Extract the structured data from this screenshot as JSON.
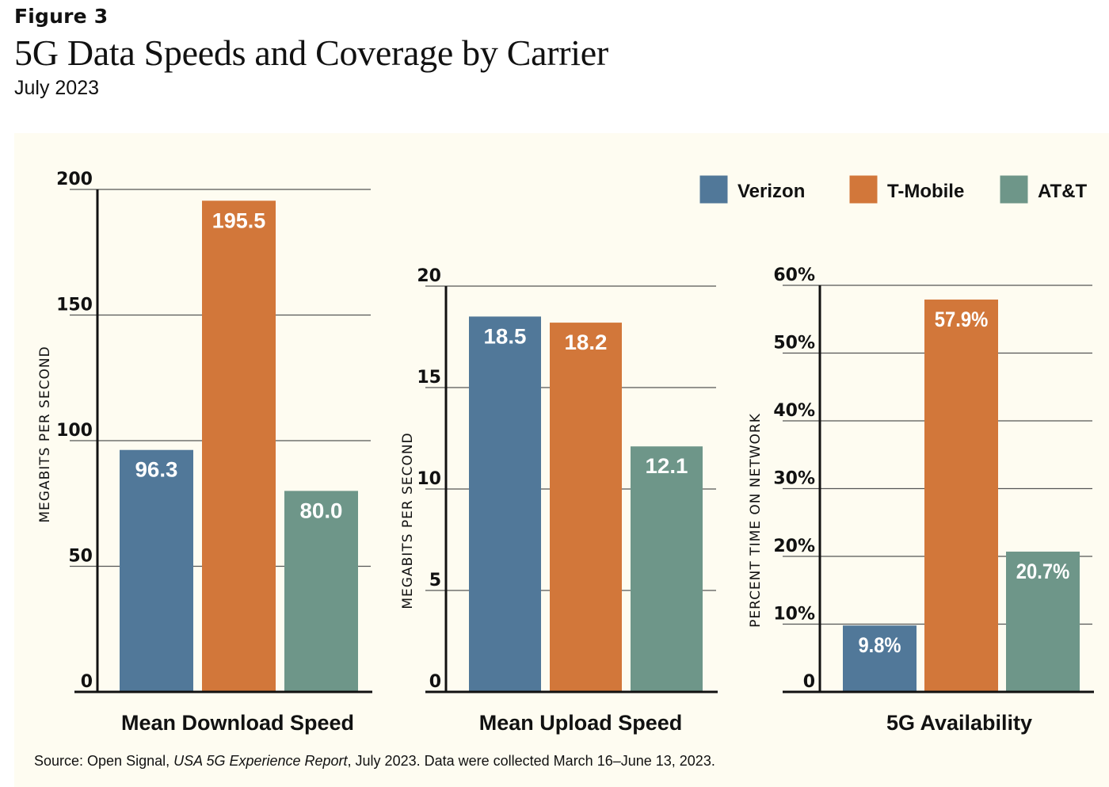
{
  "figure_label": "Figure 3",
  "title": "5G Data Speeds and Coverage by Carrier",
  "subtitle": "July 2023",
  "source": {
    "prefix": "Source: Open Signal, ",
    "italic": "USA 5G Experience Report",
    "suffix": ", July 2023. Data were collected March 16–June 13, 2023."
  },
  "colors": {
    "Verizon": "#517899",
    "T-Mobile": "#d2773a",
    "AT&T": "#6e9689",
    "background": "#fefcf1",
    "gridline": "#555555",
    "axis": "#111111"
  },
  "legend": {
    "position": "top-right",
    "items": [
      {
        "label": "Verizon",
        "color": "#517899"
      },
      {
        "label": "T-Mobile",
        "color": "#d2773a"
      },
      {
        "label": "AT&T",
        "color": "#6e9689"
      }
    ]
  },
  "chart_data": [
    {
      "type": "bar",
      "title": "Mean Download Speed",
      "xlabel": "Mean Download Speed",
      "ylabel": "MEGABITS PER SECOND",
      "categories": [
        "Verizon",
        "T-Mobile",
        "AT&T"
      ],
      "values": [
        96.3,
        195.5,
        80.0
      ],
      "value_labels": [
        "96.3",
        "195.5",
        "80.0"
      ],
      "ylim": [
        0,
        200
      ],
      "yticks": [
        0,
        50,
        100,
        150,
        200
      ],
      "ytick_labels": [
        "0",
        "50",
        "100",
        "150",
        "200"
      ],
      "grid": true
    },
    {
      "type": "bar",
      "title": "Mean Upload Speed",
      "xlabel": "Mean Upload Speed",
      "ylabel": "MEGABITS PER SECOND",
      "categories": [
        "Verizon",
        "T-Mobile",
        "AT&T"
      ],
      "values": [
        18.5,
        18.2,
        12.1
      ],
      "value_labels": [
        "18.5",
        "18.2",
        "12.1"
      ],
      "ylim": [
        0,
        20
      ],
      "yticks": [
        0,
        5,
        10,
        15,
        20
      ],
      "ytick_labels": [
        "0",
        "5",
        "10",
        "15",
        "20"
      ],
      "grid": true
    },
    {
      "type": "bar",
      "title": "5G Availability",
      "xlabel": "5G Availability",
      "ylabel": "PERCENT TIME ON NETWORK",
      "categories": [
        "Verizon",
        "T-Mobile",
        "AT&T"
      ],
      "values": [
        9.8,
        57.9,
        20.7
      ],
      "value_labels": [
        "9.8%",
        "57.9%",
        "20.7%"
      ],
      "ylim": [
        0,
        60
      ],
      "yticks": [
        0,
        10,
        20,
        30,
        40,
        50,
        60
      ],
      "ytick_labels": [
        "0",
        "10%",
        "20%",
        "30%",
        "40%",
        "50%",
        "60%"
      ],
      "grid": true
    }
  ]
}
